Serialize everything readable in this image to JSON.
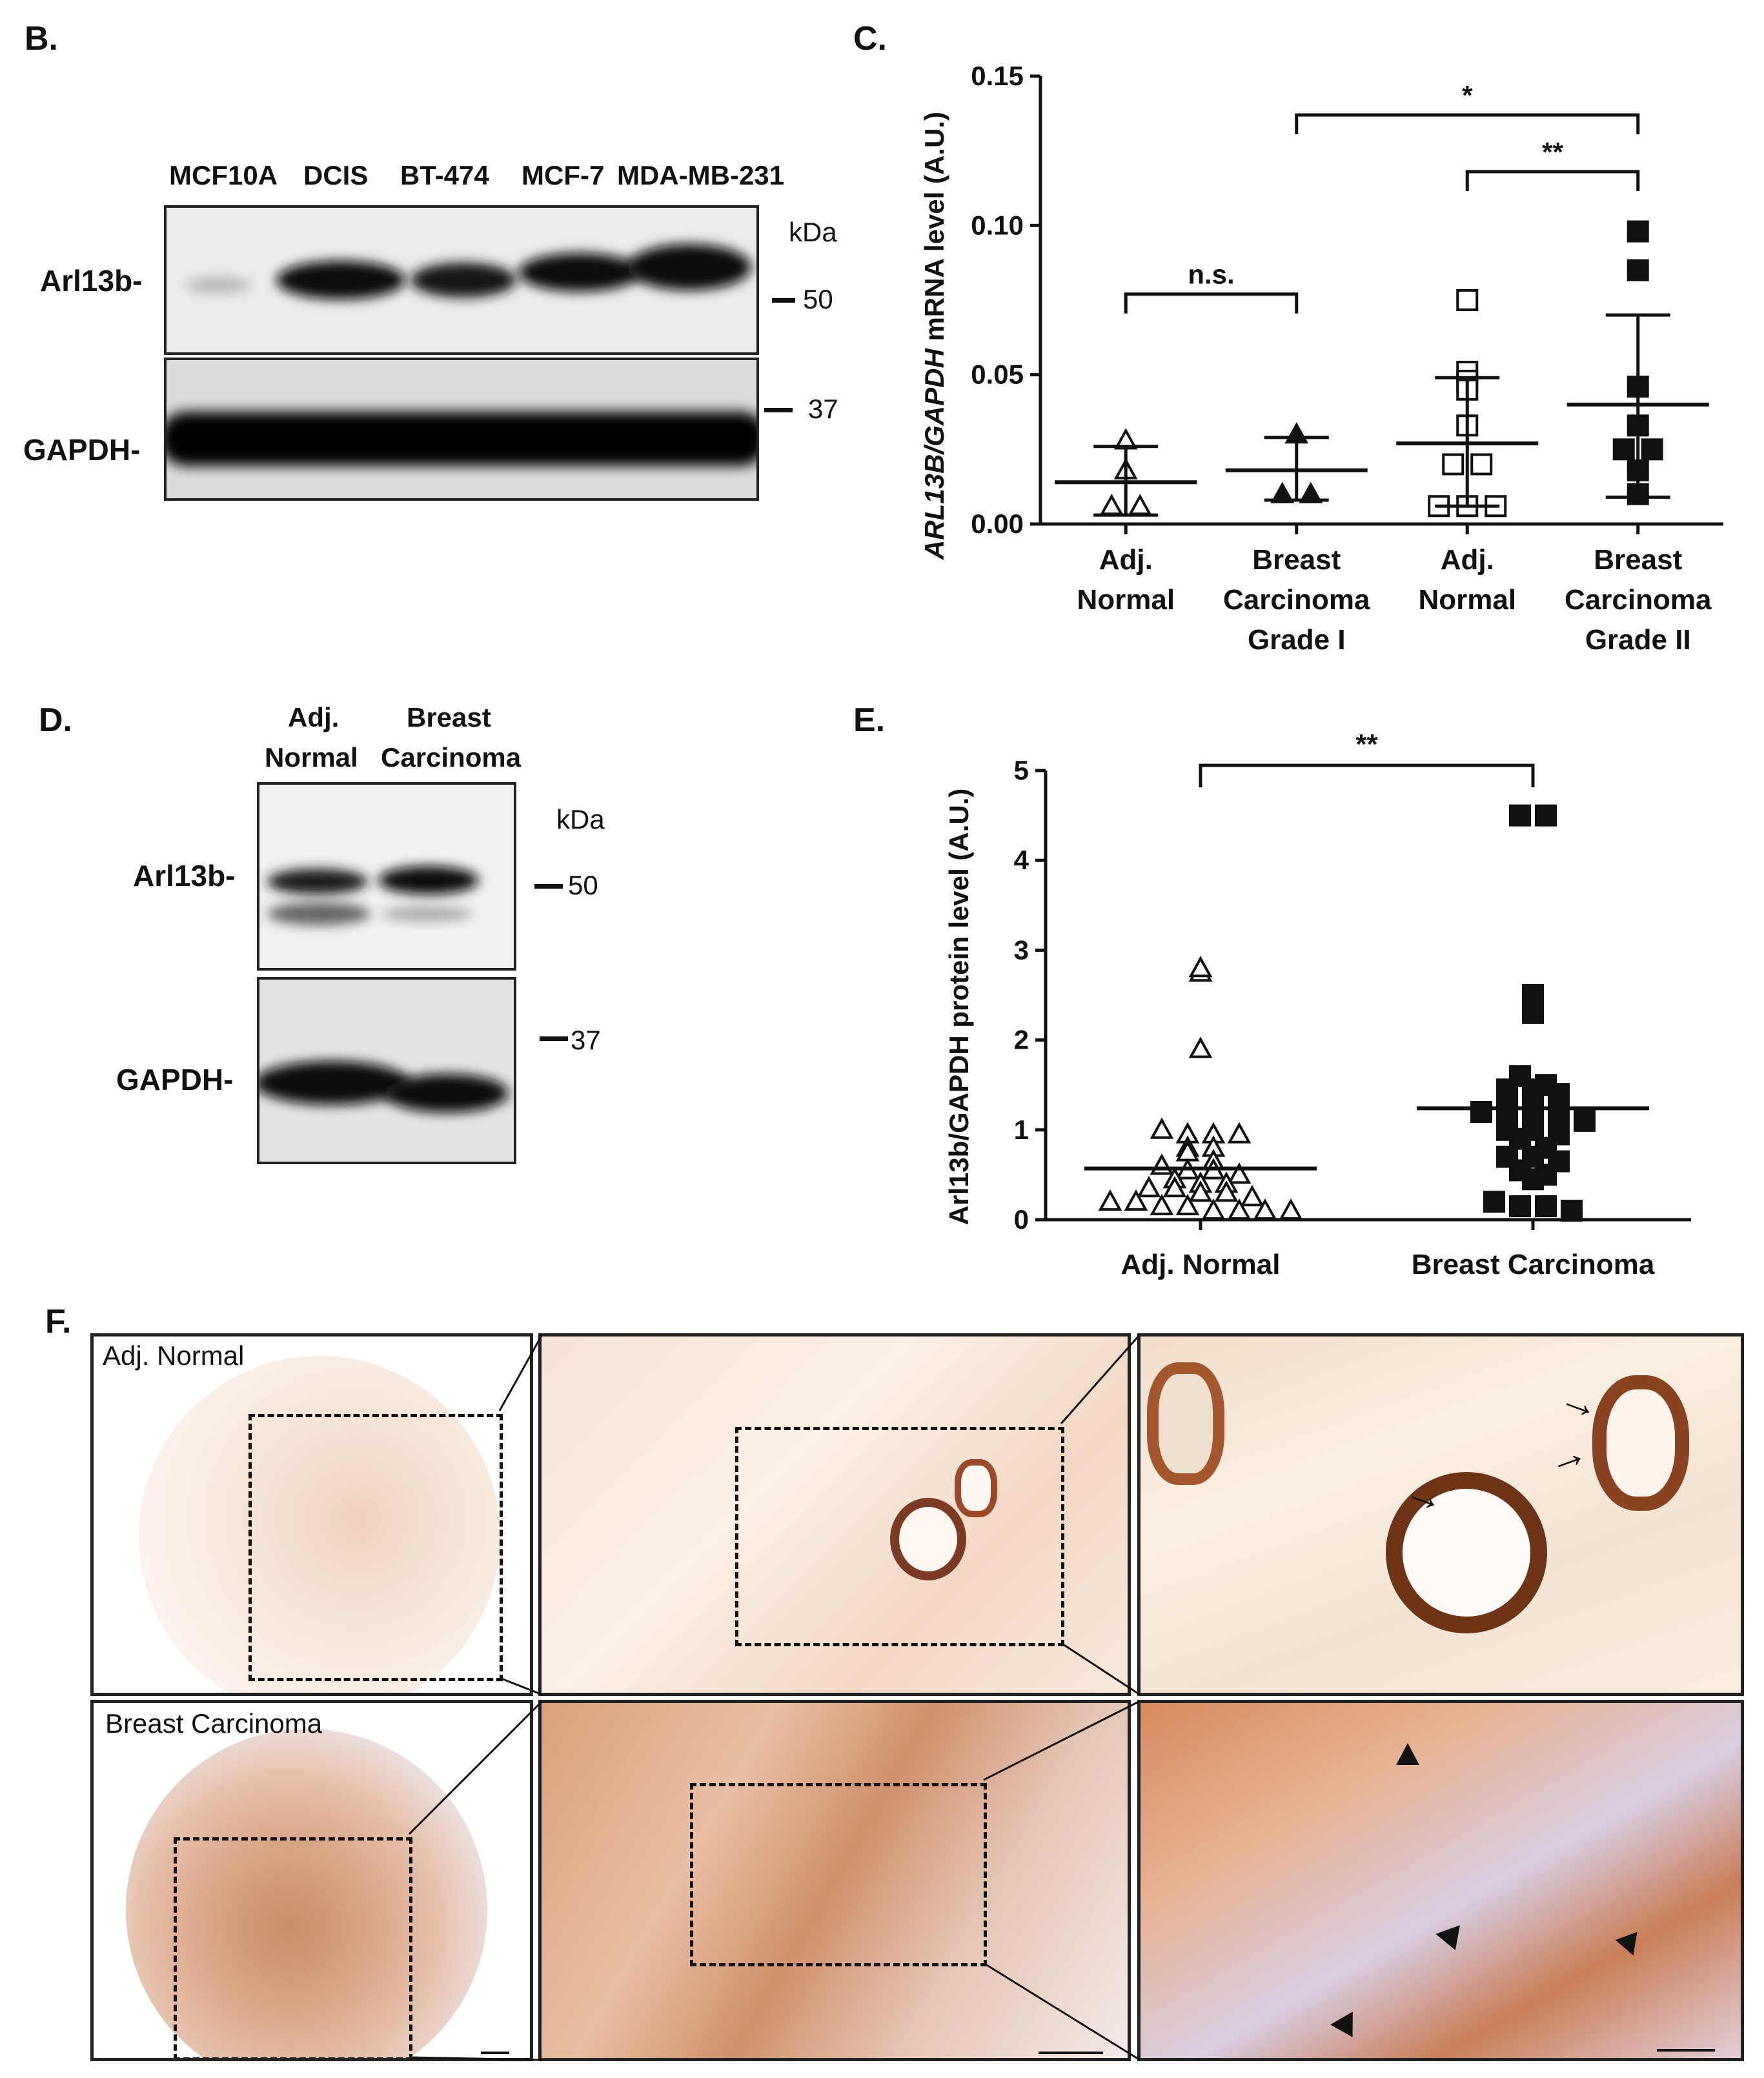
{
  "panel_b": {
    "letter": "B.",
    "lanes": [
      "MCF10A",
      "DCIS",
      "BT-474",
      "MCF-7",
      "MDA-MB-231"
    ],
    "kda_label": "kDa",
    "blot_labels": [
      "Arl13b-",
      "GAPDH-"
    ],
    "markers": [
      "50",
      "37"
    ]
  },
  "panel_c": {
    "letter": "C."
  },
  "panel_d": {
    "letter": "D.",
    "lanes_line1": [
      "Adj.",
      "Breast"
    ],
    "lanes_line2": [
      "Normal",
      "Carcinoma"
    ],
    "kda_label": "kDa",
    "blot_labels": [
      "Arl13b-",
      "GAPDH-"
    ],
    "markers": [
      "50",
      "37"
    ]
  },
  "panel_e": {
    "letter": "E."
  },
  "panel_f": {
    "letter": "F.",
    "row_labels": [
      "Adj. Normal",
      "Breast Carcinoma"
    ],
    "colors": {
      "stain": "#c97a4a",
      "background": "#f4e6dc",
      "nuclei": "#4a5aa8"
    }
  },
  "chart_data": [
    {
      "type": "scatter",
      "ylabel_italic": "ARL13B/GAPDH",
      "ylabel_rest": " mRNA level (A.U.)",
      "ylim": [
        0,
        0.15
      ],
      "yticks": [
        "0.00",
        "0.05",
        "0.10",
        "0.15"
      ],
      "categories": [
        "Adj.\nNormal",
        "Breast\nCarcinoma\nGrade I",
        "Adj.\nNormal",
        "Breast\nCarcinoma\nGrade II"
      ],
      "series": [
        {
          "marker": "open-triangle",
          "values": [
            0.028,
            0.018,
            0.006,
            0.006
          ]
        },
        {
          "marker": "filled-triangle",
          "values": [
            0.03,
            0.01,
            0.01
          ]
        },
        {
          "marker": "open-square",
          "values": [
            0.075,
            0.051,
            0.048,
            0.045,
            0.033,
            0.02,
            0.02,
            0.006,
            0.006,
            0.006
          ]
        },
        {
          "marker": "filled-square",
          "values": [
            0.098,
            0.085,
            0.046,
            0.033,
            0.025,
            0.025,
            0.018,
            0.01
          ]
        }
      ],
      "means": [
        0.014,
        0.018,
        0.027,
        0.04
      ],
      "errors": [
        [
          0.003,
          0.026
        ],
        [
          0.008,
          0.029
        ],
        [
          0.006,
          0.049
        ],
        [
          0.009,
          0.07
        ]
      ],
      "significance": [
        {
          "from": 0,
          "to": 1,
          "label": "n.s."
        },
        {
          "from": 1,
          "to": 3,
          "label": "*"
        },
        {
          "from": 2,
          "to": 3,
          "label": "**"
        }
      ]
    },
    {
      "type": "scatter",
      "ylabel": "Arl13b/GAPDH protein  level (A.U.)",
      "ylim": [
        0,
        5
      ],
      "yticks": [
        "0",
        "1",
        "2",
        "3",
        "4",
        "5"
      ],
      "categories": [
        "Adj. Normal",
        "Breast Carcinoma"
      ],
      "series": [
        {
          "marker": "open-triangle",
          "values": [
            2.75,
            2.8,
            1.9,
            1.0,
            0.95,
            0.95,
            0.95,
            0.8,
            0.8,
            0.75,
            0.65,
            0.6,
            0.55,
            0.55,
            0.5,
            0.45,
            0.4,
            0.4,
            0.35,
            0.35,
            0.3,
            0.3,
            0.25,
            0.2,
            0.2,
            0.15,
            0.15,
            0.1,
            0.1,
            0.1,
            0.1
          ]
        },
        {
          "marker": "filled-square",
          "values": [
            4.5,
            4.5,
            2.5,
            2.3,
            1.6,
            1.5,
            1.45,
            1.45,
            1.4,
            1.35,
            1.35,
            1.3,
            1.2,
            1.2,
            1.2,
            1.15,
            1.1,
            1.0,
            1.0,
            0.95,
            0.9,
            0.8,
            0.7,
            0.7,
            0.65,
            0.55,
            0.5,
            0.45,
            0.2,
            0.15,
            0.15,
            0.1
          ]
        }
      ],
      "means": [
        0.57,
        1.24
      ],
      "significance": [
        {
          "from": 0,
          "to": 1,
          "label": "**"
        }
      ]
    }
  ]
}
